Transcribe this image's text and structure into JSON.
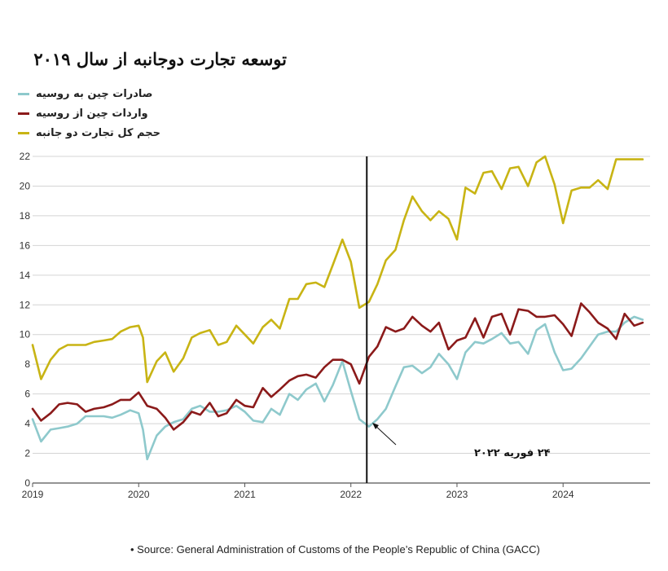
{
  "chart_data": {
    "type": "line",
    "title": "توسعه تجارت دوجانبه از سال ۲۰۱۹",
    "xlabel": "",
    "ylabel": "",
    "xlim": [
      2019.0,
      2024.82
    ],
    "ylim": [
      0,
      22
    ],
    "yticks": [
      0,
      2,
      4,
      6,
      8,
      10,
      12,
      14,
      16,
      18,
      20,
      22
    ],
    "xticks": [
      2019,
      2020,
      2021,
      2022,
      2023,
      2024
    ],
    "grid": "horizontal",
    "legend": "top-left",
    "series": [
      {
        "name": "صادرات چین به روسیه",
        "color": "#8ec9cc",
        "points": [
          [
            2019.0,
            4.3
          ],
          [
            2019.08,
            2.8
          ],
          [
            2019.17,
            3.6
          ],
          [
            2019.25,
            3.7
          ],
          [
            2019.33,
            3.8
          ],
          [
            2019.42,
            4.0
          ],
          [
            2019.5,
            4.5
          ],
          [
            2019.58,
            4.5
          ],
          [
            2019.67,
            4.5
          ],
          [
            2019.75,
            4.4
          ],
          [
            2019.83,
            4.6
          ],
          [
            2019.92,
            4.9
          ],
          [
            2020.0,
            4.7
          ],
          [
            2020.04,
            3.6
          ],
          [
            2020.08,
            1.6
          ],
          [
            2020.17,
            3.2
          ],
          [
            2020.25,
            3.8
          ],
          [
            2020.33,
            4.1
          ],
          [
            2020.42,
            4.3
          ],
          [
            2020.5,
            5.0
          ],
          [
            2020.58,
            5.2
          ],
          [
            2020.67,
            4.8
          ],
          [
            2020.75,
            4.8
          ],
          [
            2020.83,
            4.9
          ],
          [
            2020.92,
            5.2
          ],
          [
            2021.0,
            4.8
          ],
          [
            2021.08,
            4.2
          ],
          [
            2021.17,
            4.1
          ],
          [
            2021.25,
            5.0
          ],
          [
            2021.33,
            4.6
          ],
          [
            2021.42,
            6.0
          ],
          [
            2021.5,
            5.6
          ],
          [
            2021.58,
            6.3
          ],
          [
            2021.67,
            6.7
          ],
          [
            2021.75,
            5.5
          ],
          [
            2021.83,
            6.6
          ],
          [
            2021.92,
            8.2
          ],
          [
            2022.0,
            6.2
          ],
          [
            2022.08,
            4.3
          ],
          [
            2022.17,
            3.8
          ],
          [
            2022.25,
            4.3
          ],
          [
            2022.33,
            5.0
          ],
          [
            2022.42,
            6.5
          ],
          [
            2022.5,
            7.8
          ],
          [
            2022.58,
            7.9
          ],
          [
            2022.67,
            7.4
          ],
          [
            2022.75,
            7.8
          ],
          [
            2022.83,
            8.7
          ],
          [
            2022.92,
            8.0
          ],
          [
            2023.0,
            7.0
          ],
          [
            2023.08,
            8.8
          ],
          [
            2023.17,
            9.5
          ],
          [
            2023.25,
            9.4
          ],
          [
            2023.33,
            9.7
          ],
          [
            2023.42,
            10.1
          ],
          [
            2023.5,
            9.4
          ],
          [
            2023.58,
            9.5
          ],
          [
            2023.67,
            8.7
          ],
          [
            2023.75,
            10.3
          ],
          [
            2023.83,
            10.7
          ],
          [
            2023.92,
            8.8
          ],
          [
            2024.0,
            7.6
          ],
          [
            2024.08,
            7.7
          ],
          [
            2024.17,
            8.4
          ],
          [
            2024.25,
            9.2
          ],
          [
            2024.33,
            10.0
          ],
          [
            2024.42,
            10.2
          ],
          [
            2024.5,
            10.2
          ],
          [
            2024.58,
            10.8
          ],
          [
            2024.67,
            11.2
          ],
          [
            2024.75,
            11.0
          ]
        ]
      },
      {
        "name": "واردات چین  از روسیه",
        "color": "#8b1a1a",
        "points": [
          [
            2019.0,
            5.0
          ],
          [
            2019.08,
            4.2
          ],
          [
            2019.17,
            4.7
          ],
          [
            2019.25,
            5.3
          ],
          [
            2019.33,
            5.4
          ],
          [
            2019.42,
            5.3
          ],
          [
            2019.5,
            4.8
          ],
          [
            2019.58,
            5.0
          ],
          [
            2019.67,
            5.1
          ],
          [
            2019.75,
            5.3
          ],
          [
            2019.83,
            5.6
          ],
          [
            2019.92,
            5.6
          ],
          [
            2020.0,
            6.1
          ],
          [
            2020.08,
            5.2
          ],
          [
            2020.17,
            5.0
          ],
          [
            2020.25,
            4.4
          ],
          [
            2020.33,
            3.6
          ],
          [
            2020.42,
            4.1
          ],
          [
            2020.5,
            4.8
          ],
          [
            2020.58,
            4.6
          ],
          [
            2020.67,
            5.4
          ],
          [
            2020.75,
            4.5
          ],
          [
            2020.83,
            4.7
          ],
          [
            2020.92,
            5.6
          ],
          [
            2021.0,
            5.2
          ],
          [
            2021.08,
            5.1
          ],
          [
            2021.17,
            6.4
          ],
          [
            2021.25,
            5.8
          ],
          [
            2021.33,
            6.3
          ],
          [
            2021.42,
            6.9
          ],
          [
            2021.5,
            7.2
          ],
          [
            2021.58,
            7.3
          ],
          [
            2021.67,
            7.1
          ],
          [
            2021.75,
            7.8
          ],
          [
            2021.83,
            8.3
          ],
          [
            2021.92,
            8.3
          ],
          [
            2022.0,
            8.0
          ],
          [
            2022.08,
            6.7
          ],
          [
            2022.17,
            8.5
          ],
          [
            2022.25,
            9.2
          ],
          [
            2022.33,
            10.5
          ],
          [
            2022.42,
            10.2
          ],
          [
            2022.5,
            10.4
          ],
          [
            2022.58,
            11.2
          ],
          [
            2022.67,
            10.6
          ],
          [
            2022.75,
            10.2
          ],
          [
            2022.83,
            10.8
          ],
          [
            2022.92,
            9.0
          ],
          [
            2023.0,
            9.6
          ],
          [
            2023.08,
            9.8
          ],
          [
            2023.17,
            11.1
          ],
          [
            2023.25,
            9.8
          ],
          [
            2023.33,
            11.2
          ],
          [
            2023.42,
            11.4
          ],
          [
            2023.5,
            10.0
          ],
          [
            2023.58,
            11.7
          ],
          [
            2023.67,
            11.6
          ],
          [
            2023.75,
            11.2
          ],
          [
            2023.83,
            11.2
          ],
          [
            2023.92,
            11.3
          ],
          [
            2024.0,
            10.7
          ],
          [
            2024.08,
            9.9
          ],
          [
            2024.17,
            12.1
          ],
          [
            2024.25,
            11.5
          ],
          [
            2024.33,
            10.8
          ],
          [
            2024.42,
            10.4
          ],
          [
            2024.5,
            9.7
          ],
          [
            2024.58,
            11.4
          ],
          [
            2024.67,
            10.6
          ],
          [
            2024.75,
            10.8
          ]
        ]
      },
      {
        "name": "حجم کل تجارت دو جانبه",
        "color": "#c8b414",
        "points": [
          [
            2019.0,
            9.3
          ],
          [
            2019.08,
            7.0
          ],
          [
            2019.17,
            8.3
          ],
          [
            2019.25,
            9.0
          ],
          [
            2019.33,
            9.3
          ],
          [
            2019.42,
            9.3
          ],
          [
            2019.5,
            9.3
          ],
          [
            2019.58,
            9.5
          ],
          [
            2019.67,
            9.6
          ],
          [
            2019.75,
            9.7
          ],
          [
            2019.83,
            10.2
          ],
          [
            2019.92,
            10.5
          ],
          [
            2020.0,
            10.6
          ],
          [
            2020.04,
            9.8
          ],
          [
            2020.08,
            6.8
          ],
          [
            2020.17,
            8.2
          ],
          [
            2020.25,
            8.8
          ],
          [
            2020.33,
            7.5
          ],
          [
            2020.42,
            8.4
          ],
          [
            2020.5,
            9.8
          ],
          [
            2020.58,
            10.1
          ],
          [
            2020.67,
            10.3
          ],
          [
            2020.75,
            9.3
          ],
          [
            2020.83,
            9.5
          ],
          [
            2020.92,
            10.6
          ],
          [
            2021.0,
            10.0
          ],
          [
            2021.08,
            9.4
          ],
          [
            2021.17,
            10.5
          ],
          [
            2021.25,
            11.0
          ],
          [
            2021.33,
            10.4
          ],
          [
            2021.42,
            12.4
          ],
          [
            2021.5,
            12.4
          ],
          [
            2021.58,
            13.4
          ],
          [
            2021.67,
            13.5
          ],
          [
            2021.75,
            13.2
          ],
          [
            2021.83,
            14.7
          ],
          [
            2021.92,
            16.4
          ],
          [
            2022.0,
            14.9
          ],
          [
            2022.08,
            11.8
          ],
          [
            2022.17,
            12.2
          ],
          [
            2022.25,
            13.4
          ],
          [
            2022.33,
            15.0
          ],
          [
            2022.42,
            15.7
          ],
          [
            2022.5,
            17.7
          ],
          [
            2022.58,
            19.3
          ],
          [
            2022.67,
            18.3
          ],
          [
            2022.75,
            17.7
          ],
          [
            2022.83,
            18.3
          ],
          [
            2022.92,
            17.8
          ],
          [
            2023.0,
            16.4
          ],
          [
            2023.08,
            19.9
          ],
          [
            2023.17,
            19.5
          ],
          [
            2023.25,
            20.9
          ],
          [
            2023.33,
            21.0
          ],
          [
            2023.42,
            19.8
          ],
          [
            2023.5,
            21.2
          ],
          [
            2023.58,
            21.3
          ],
          [
            2023.67,
            20.0
          ],
          [
            2023.75,
            21.6
          ],
          [
            2023.83,
            22.0
          ],
          [
            2023.92,
            20.1
          ],
          [
            2024.0,
            17.5
          ],
          [
            2024.08,
            19.7
          ],
          [
            2024.17,
            19.9
          ],
          [
            2024.25,
            19.9
          ],
          [
            2024.33,
            20.4
          ],
          [
            2024.42,
            19.8
          ],
          [
            2024.5,
            21.8
          ],
          [
            2024.58,
            21.8
          ],
          [
            2024.67,
            21.8
          ],
          [
            2024.75,
            21.8
          ]
        ]
      }
    ],
    "annotation": {
      "x": 2022.15,
      "text": "۲۴ فوریه ۲۰۲۲"
    }
  },
  "source": "• Source: General Administration of Customs of the People’s Republic of China (GACC)"
}
